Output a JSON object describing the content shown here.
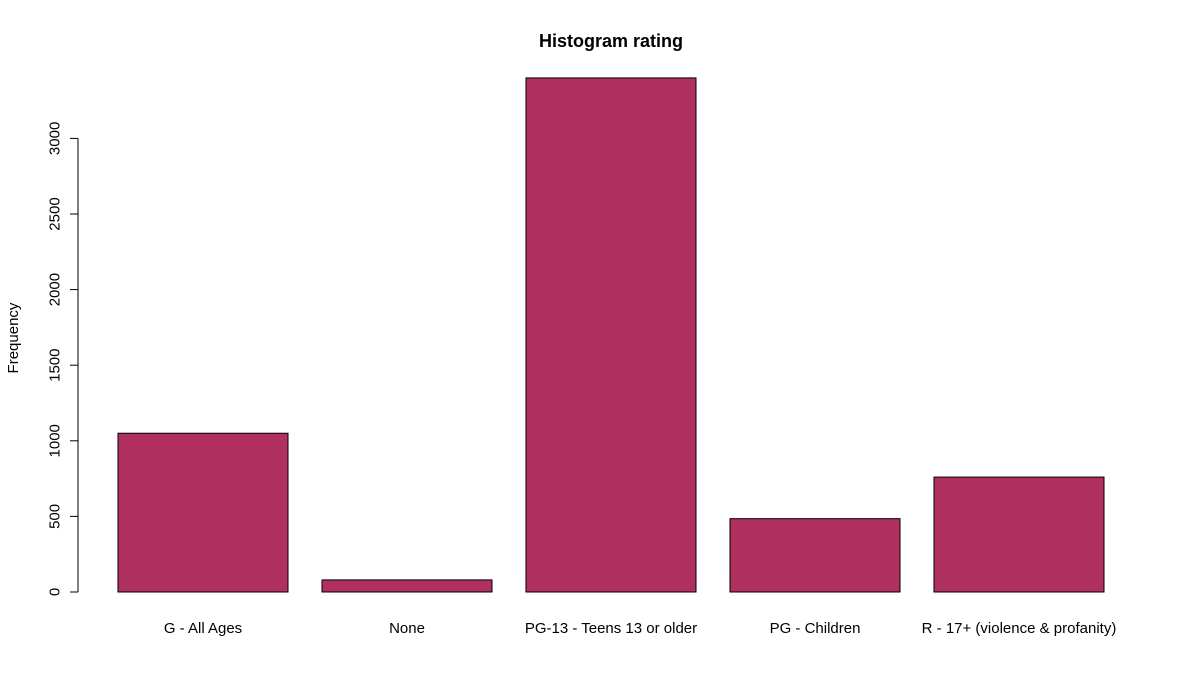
{
  "chart_data": {
    "type": "bar",
    "title": "Histogram rating",
    "xlabel": "",
    "ylabel": "Frequency",
    "categories": [
      "G - All Ages",
      "None",
      "PG-13 - Teens 13 or older",
      "PG - Children",
      "R - 17+ (violence & profanity)"
    ],
    "values": [
      1050,
      80,
      3400,
      485,
      760
    ],
    "yticks": [
      "0",
      "500",
      "1000",
      "1500",
      "2000",
      "2500",
      "3000"
    ],
    "ylim": [
      0,
      3400
    ],
    "bar_color": "#B03060",
    "grid": false
  }
}
